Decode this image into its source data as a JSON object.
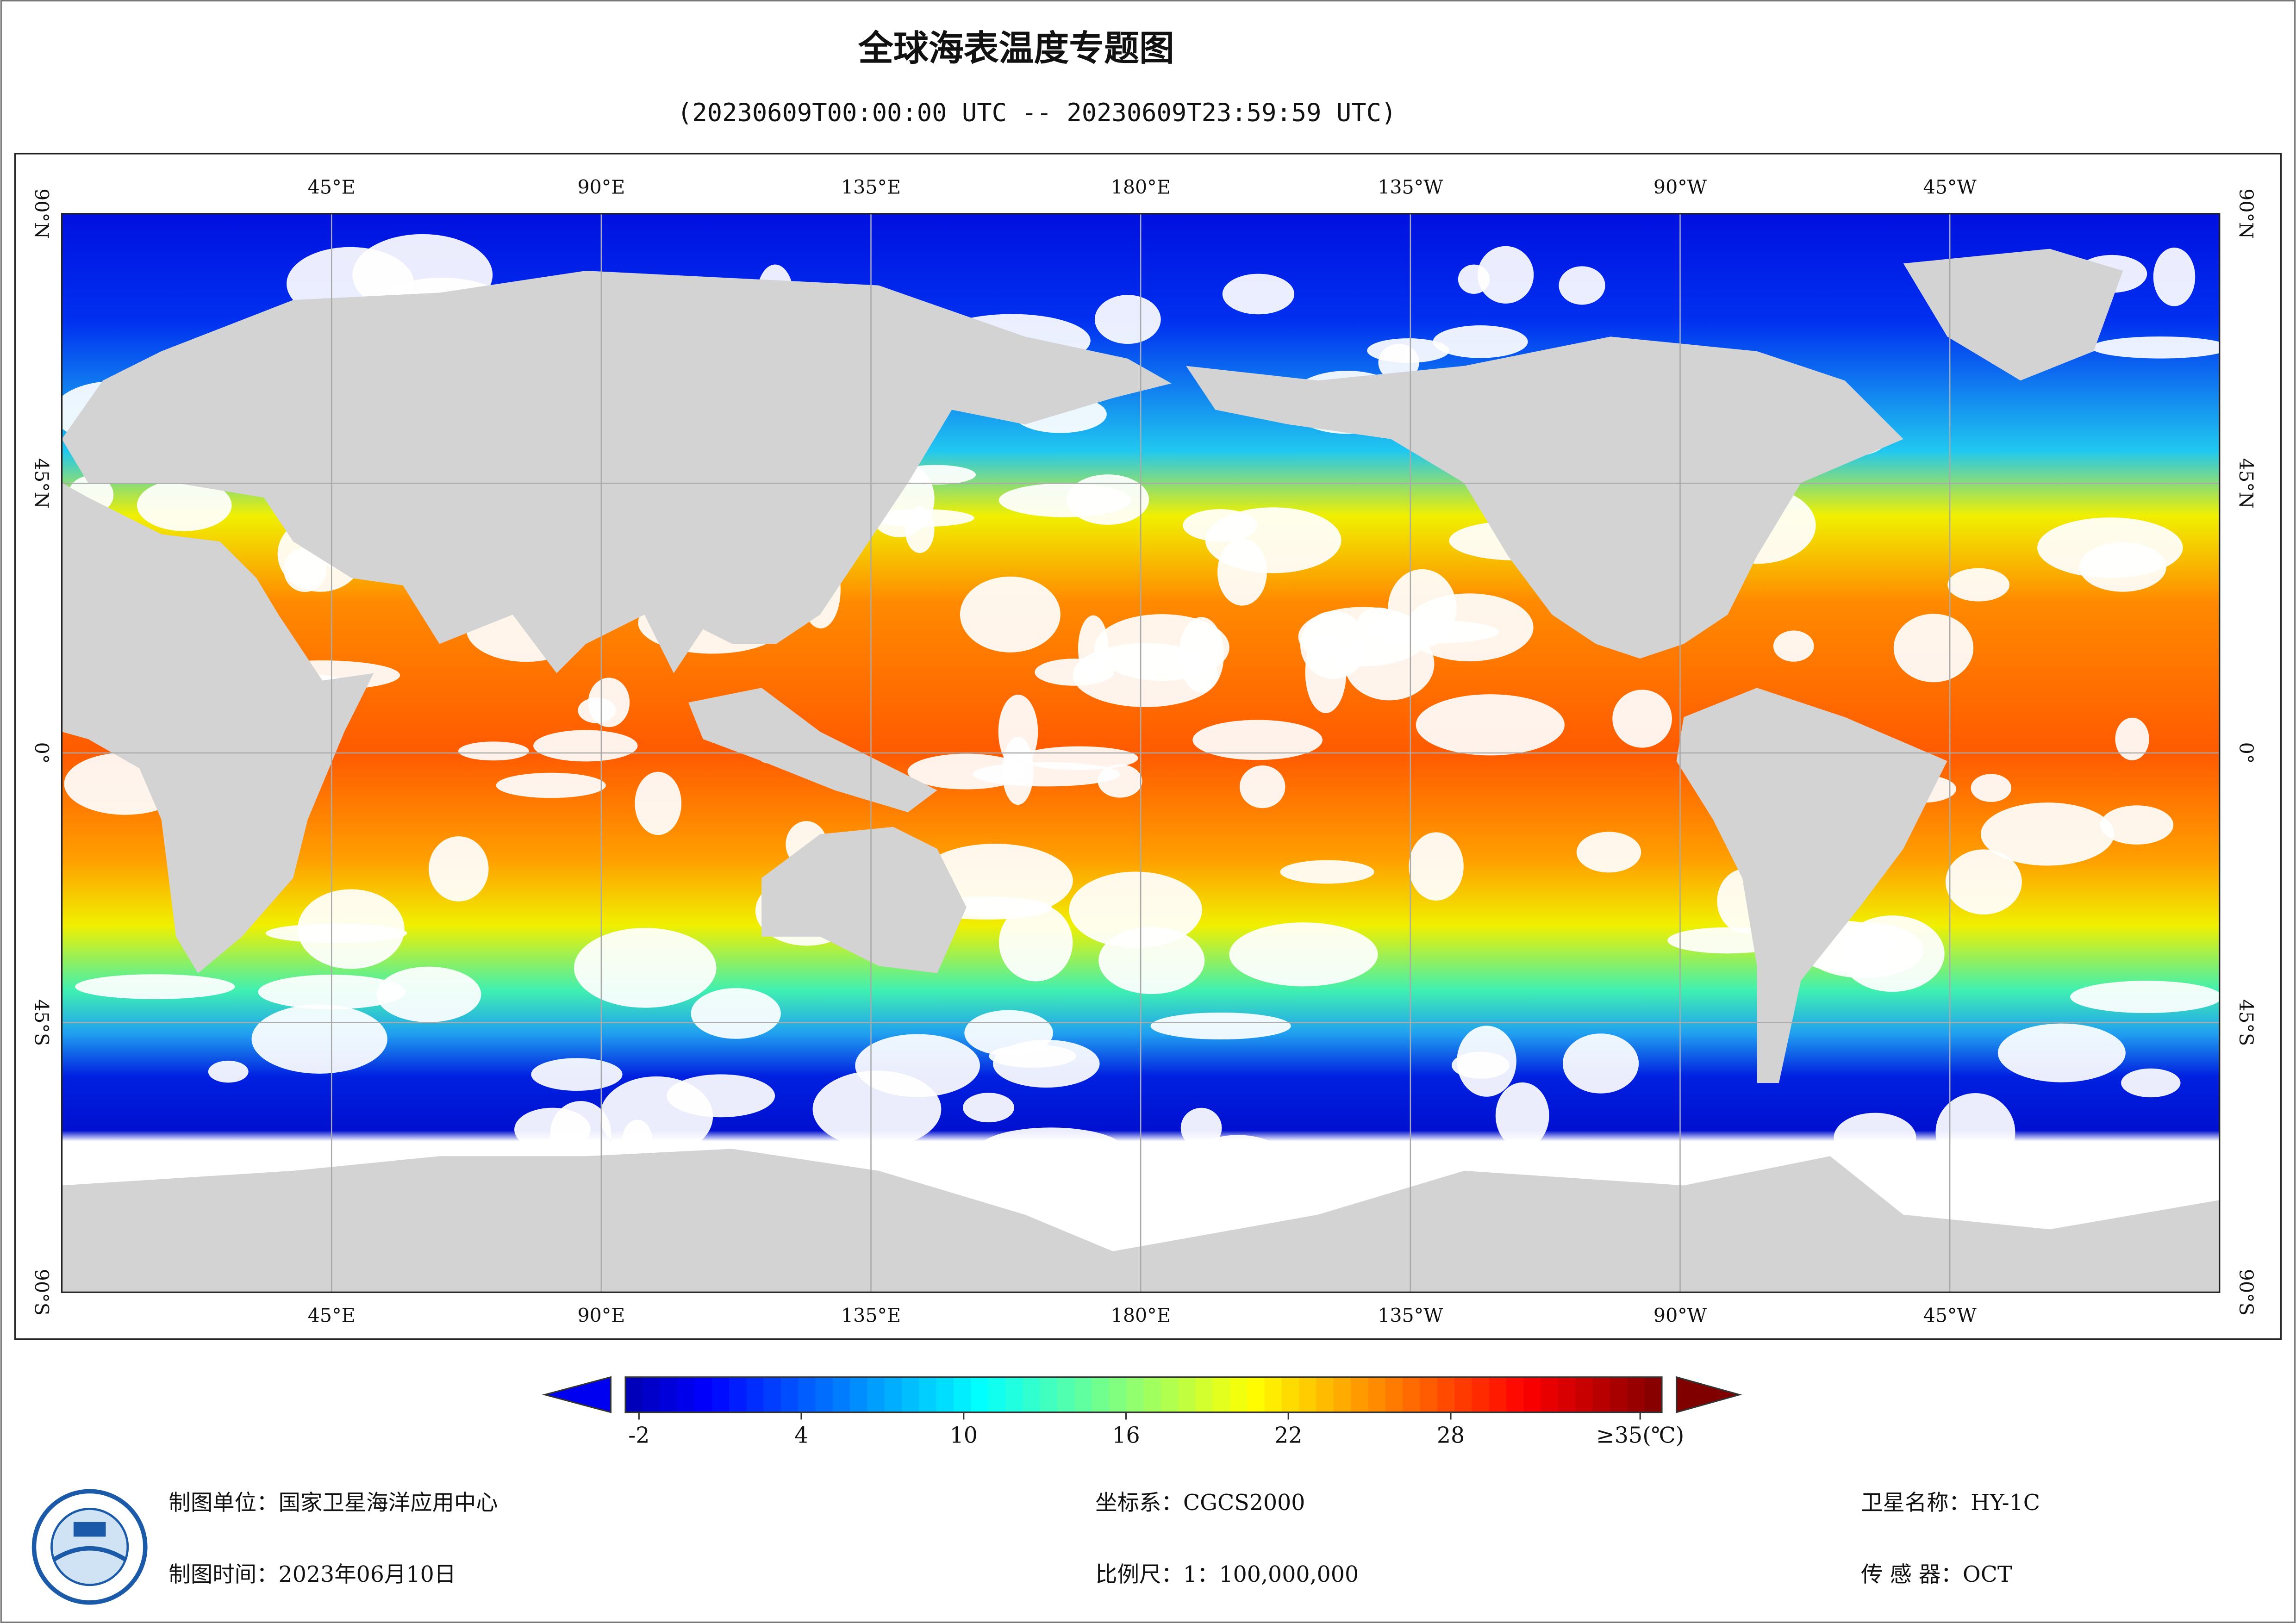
{
  "title": "全球海表温度专题图",
  "subtitle": "(20230609T00:00:00 UTC -- 20230609T23:59:59 UTC)",
  "map": {
    "xlim": [
      0,
      360
    ],
    "ylim": [
      -90,
      90
    ],
    "lon_ticks": [
      {
        "value": 45,
        "label": "45°E"
      },
      {
        "value": 90,
        "label": "90°E"
      },
      {
        "value": 135,
        "label": "135°E"
      },
      {
        "value": 180,
        "label": "180°E"
      },
      {
        "value": 225,
        "label": "135°W"
      },
      {
        "value": 270,
        "label": "90°W"
      },
      {
        "value": 315,
        "label": "45°W"
      }
    ],
    "lat_ticks": [
      {
        "value": 90,
        "label": "90°N"
      },
      {
        "value": 45,
        "label": "45°N"
      },
      {
        "value": 0,
        "label": "0°"
      },
      {
        "value": -45,
        "label": "45°S"
      },
      {
        "value": -90,
        "label": "90°S"
      }
    ]
  },
  "colorbar": {
    "lim": [
      -2.5,
      35.8
    ],
    "ticks": [
      -2,
      4,
      10,
      16,
      22,
      28,
      {
        "value": 35,
        "label": "≥35(℃)"
      }
    ]
  },
  "footer": [
    {
      "label": "制图单位：",
      "value": "国家卫星海洋应用中心"
    },
    {
      "label": "制图时间：",
      "value": "2023年06月10日"
    },
    {
      "label": "坐标系：",
      "value": "CGCS2000"
    },
    {
      "label": "比例尺：",
      "value": "1：100,000,000"
    },
    {
      "label": "卫星名称：",
      "value": "HY-1C"
    },
    {
      "label": "传 感 器：",
      "value": "OCT"
    }
  ]
}
